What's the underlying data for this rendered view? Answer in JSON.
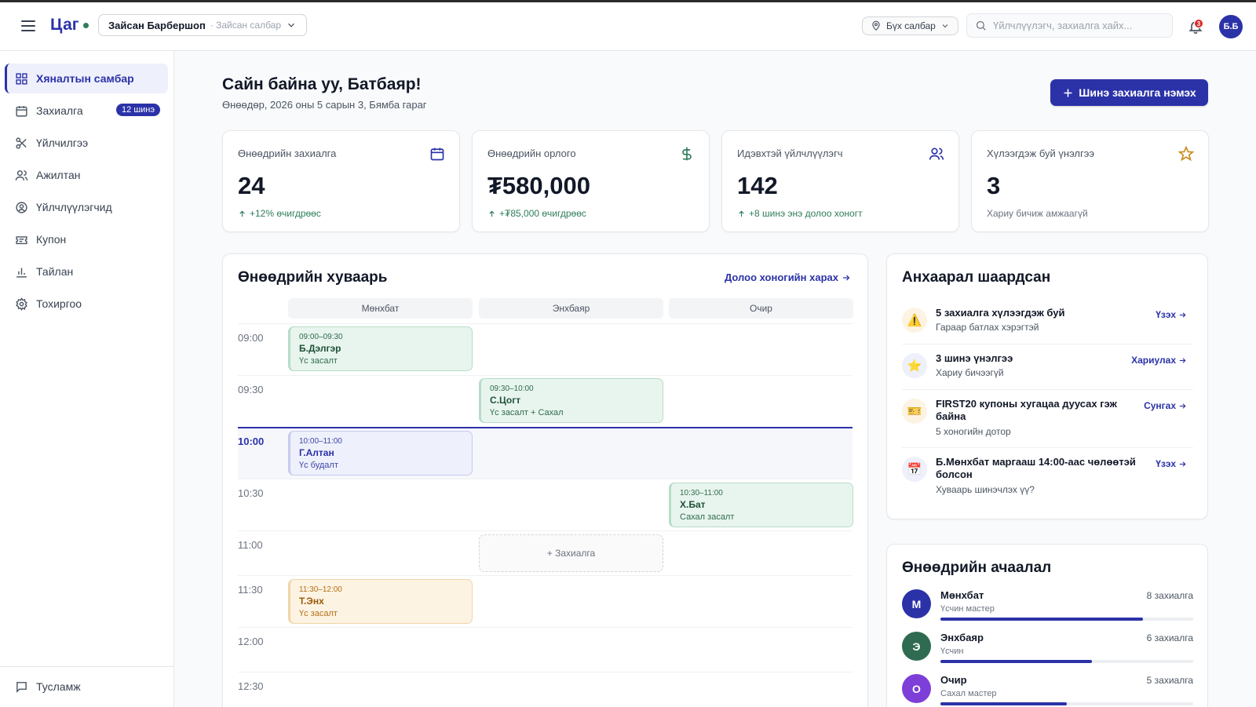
{
  "app": {
    "logo": "Цаг",
    "shop_name": "Зайсан Барбершоп",
    "shop_sub": "· Зайсан салбар",
    "branch": "Бүх салбар",
    "search_placeholder": "Үйлчлүүлэгч, захиалга хайх...",
    "notification_count": "3",
    "avatar_initials": "Б.Б"
  },
  "sidebar": {
    "items": [
      {
        "label": "Хяналтын самбар",
        "icon": "grid-icon",
        "active": true
      },
      {
        "label": "Захиалга",
        "icon": "calendar-icon",
        "badge": "12 шинэ"
      },
      {
        "label": "Үйлчилгээ",
        "icon": "scissors-icon"
      },
      {
        "label": "Ажилтан",
        "icon": "users-icon"
      },
      {
        "label": "Үйлчлүүлэгчид",
        "icon": "user-circle-icon"
      },
      {
        "label": "Купон",
        "icon": "ticket-icon"
      },
      {
        "label": "Тайлан",
        "icon": "bar-chart-icon"
      },
      {
        "label": "Тохиргоо",
        "icon": "gear-icon"
      }
    ],
    "help": "Тусламж"
  },
  "header": {
    "greeting": "Сайн байна уу, Батбаяр!",
    "date": "Өнөөдөр, 2026 оны 5 сарын 3, Бямба гараг",
    "new_booking": "Шинэ захиалга нэмэх"
  },
  "stats": [
    {
      "label": "Өнөөдрийн захиалга",
      "value": "24",
      "trend": "+12% өчигдрөөс",
      "icon": "calendar-icon",
      "color": "#2b32a8"
    },
    {
      "label": "Өнөөдрийн орлого",
      "value": "₮580,000",
      "trend": "+₮85,000 өчигдрөөс",
      "icon": "dollar-icon",
      "color": "#2f7d5a"
    },
    {
      "label": "Идэвхтэй үйлчлүүлэгч",
      "value": "142",
      "trend": "+8 шинэ энэ долоо хоногт",
      "icon": "users-icon",
      "color": "#2b32a8"
    },
    {
      "label": "Хүлээгдэж буй үнэлгээ",
      "value": "3",
      "trend": "Хариу бичиж амжаагүй",
      "icon": "star-icon",
      "color": "#c98a1e"
    }
  ],
  "schedule": {
    "title": "Өнөөдрийн хуваарь",
    "week_link": "Долоо хоногийн харах",
    "staff": [
      "Мөнхбат",
      "Энхбаяр",
      "Очир"
    ],
    "times": [
      "09:00",
      "09:30",
      "10:00",
      "10:30",
      "11:00",
      "11:30",
      "12:00",
      "12:30"
    ],
    "now_time": "10:00",
    "appointments": [
      {
        "time": "09:00–09:30",
        "client": "Б.Дэлгэр",
        "service": "Үс засалт",
        "staff_col": 0,
        "start": "09:00",
        "color": "green"
      },
      {
        "time": "09:30–10:00",
        "client": "С.Цогт",
        "service": "Үс засалт + Сахал",
        "staff_col": 1,
        "start": "09:30",
        "color": "green"
      },
      {
        "time": "10:00–11:00",
        "client": "Г.Алтан",
        "service": "Үс будалт",
        "staff_col": 0,
        "start": "10:00",
        "color": "purple"
      },
      {
        "time": "10:30–11:00",
        "client": "Х.Бат",
        "service": "Сахал засалт",
        "staff_col": 2,
        "start": "10:30",
        "color": "green"
      },
      {
        "time": "11:30–12:00",
        "client": "Т.Энх",
        "service": "Үс засалт",
        "staff_col": 0,
        "start": "11:30",
        "color": "amber"
      }
    ],
    "add_label": "+ Захиалга"
  },
  "attention": {
    "title": "Анхаарал шаардсан",
    "items": [
      {
        "icon": "warning-icon",
        "glyph": "⚠️",
        "title": "5 захиалга хүлээгдэж буй",
        "sub": "Гараар батлах хэрэгтэй",
        "action": "Үзэх"
      },
      {
        "icon": "star-icon",
        "glyph": "⭐",
        "title": "3 шинэ үнэлгээ",
        "sub": "Хариу бичээгүй",
        "action": "Хариулах"
      },
      {
        "icon": "ticket-icon",
        "glyph": "🎫",
        "title": "FIRST20 купоны хугацаа дуусах гэж байна",
        "sub": "5 хоногийн дотор",
        "action": "Сунгах"
      },
      {
        "icon": "calendar-icon",
        "glyph": "📅",
        "title": "Б.Мөнхбат маргааш 14:00-аас чөлөөтэй болсон",
        "sub": "Хуваарь шинэчлэх үү?",
        "action": "Үзэх"
      }
    ]
  },
  "workload": {
    "title": "Өнөөдрийн ачаалал",
    "staff": [
      {
        "initial": "М",
        "name": "Мөнхбат",
        "role": "Үсчин мастер",
        "count": "8 захиалга",
        "load": 0.8,
        "color": "#2b32a8"
      },
      {
        "initial": "Э",
        "name": "Энхбаяр",
        "role": "Үсчин",
        "count": "6 захиалга",
        "load": 0.6,
        "color": "#2f6b50"
      },
      {
        "initial": "О",
        "name": "Очир",
        "role": "Сахал мастер",
        "count": "5 захиалга",
        "load": 0.5,
        "color": "#7e3fd8"
      }
    ]
  }
}
